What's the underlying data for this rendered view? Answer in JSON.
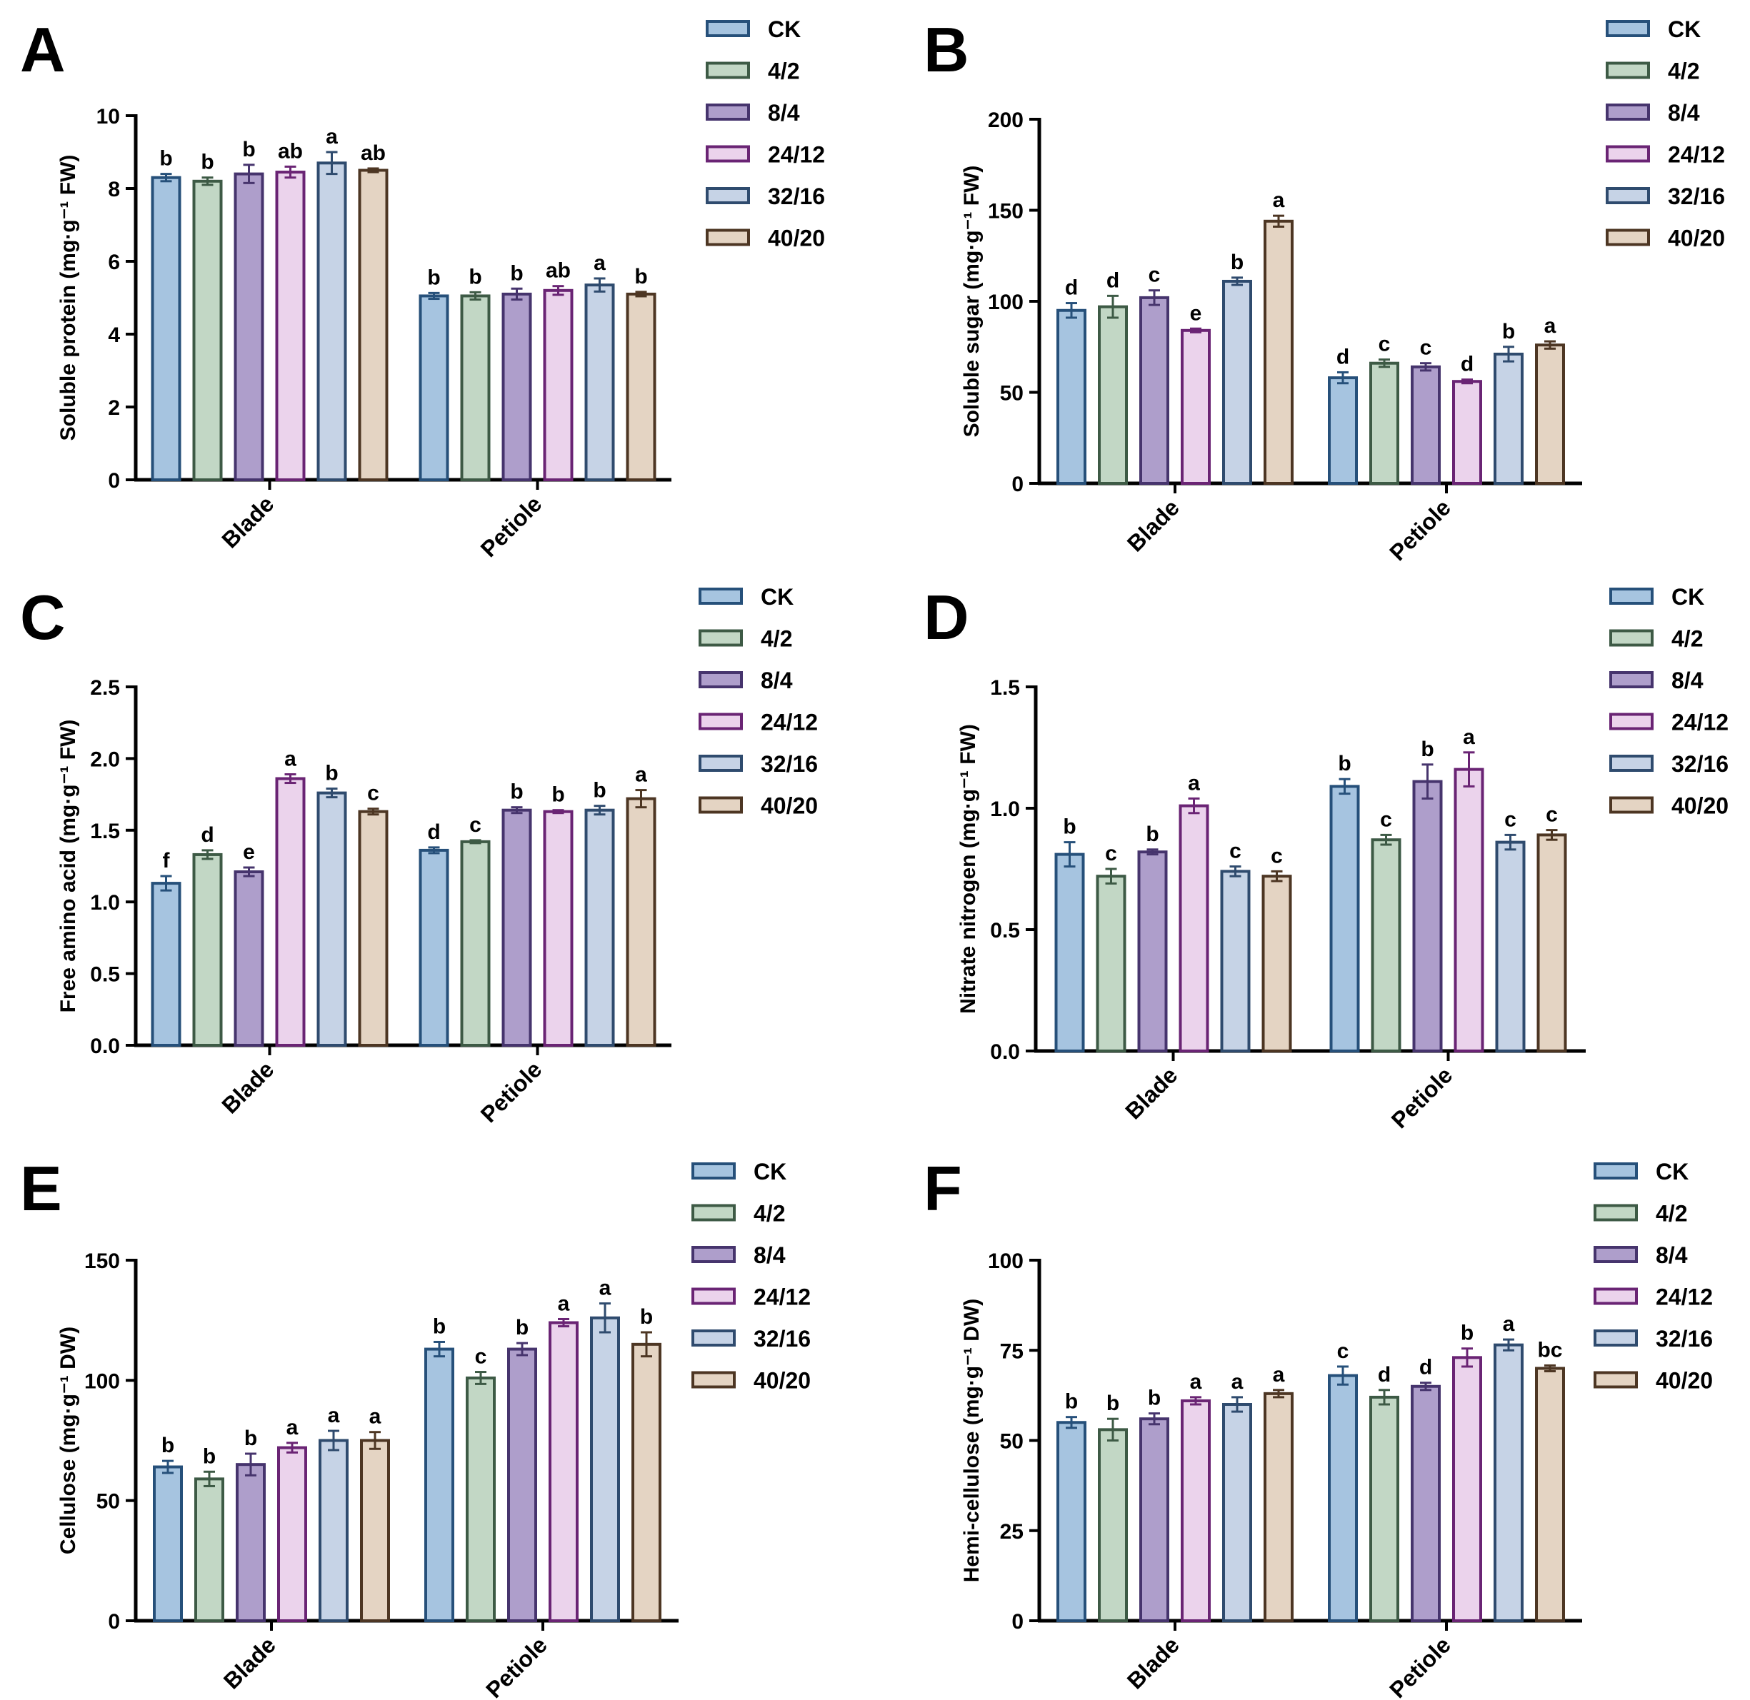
{
  "series_styles": [
    {
      "name": "CK",
      "fill": "#a6c4e0",
      "stroke": "#26507a"
    },
    {
      "name": "4/2",
      "fill": "#c2d7c5",
      "stroke": "#3d5a45"
    },
    {
      "name": "8/4",
      "fill": "#ae9ecb",
      "stroke": "#46346d"
    },
    {
      "name": "24/12",
      "fill": "#ebd3ec",
      "stroke": "#6a2474"
    },
    {
      "name": "32/16",
      "fill": "#c6d3e6",
      "stroke": "#2f4b6e"
    },
    {
      "name": "40/20",
      "fill": "#e4d4c3",
      "stroke": "#4d3623"
    }
  ],
  "chart_data": [
    {
      "panel": "A",
      "type": "bar",
      "ylabel": "Soluble protein (mg·g⁻¹ FW)",
      "ylim": [
        0,
        10
      ],
      "yticks": [
        "0",
        "2",
        "4",
        "6",
        "8",
        "10"
      ],
      "categories": [
        "Blade",
        "Petiole"
      ],
      "series": [
        {
          "name": "CK",
          "values": [
            8.3,
            5.05
          ],
          "errors": [
            0.1,
            0.08
          ],
          "letters": [
            "b",
            "b"
          ]
        },
        {
          "name": "4/2",
          "values": [
            8.2,
            5.05
          ],
          "errors": [
            0.1,
            0.1
          ],
          "letters": [
            "b",
            "b"
          ]
        },
        {
          "name": "8/4",
          "values": [
            8.4,
            5.1
          ],
          "errors": [
            0.25,
            0.15
          ],
          "letters": [
            "b",
            "b"
          ]
        },
        {
          "name": "24/12",
          "values": [
            8.45,
            5.2
          ],
          "errors": [
            0.15,
            0.12
          ],
          "letters": [
            "ab",
            "ab"
          ]
        },
        {
          "name": "32/16",
          "values": [
            8.7,
            5.35
          ],
          "errors": [
            0.3,
            0.18
          ],
          "letters": [
            "a",
            "a"
          ]
        },
        {
          "name": "40/20",
          "values": [
            8.5,
            5.1
          ],
          "errors": [
            0.05,
            0.06
          ],
          "letters": [
            "ab",
            "b"
          ]
        }
      ]
    },
    {
      "panel": "B",
      "type": "bar",
      "ylabel": "Soluble sugar (mg·g⁻¹ FW)",
      "ylim": [
        0,
        200
      ],
      "yticks": [
        "0",
        "50",
        "100",
        "150",
        "200"
      ],
      "categories": [
        "Blade",
        "Petiole"
      ],
      "series": [
        {
          "name": "CK",
          "values": [
            95,
            58
          ],
          "errors": [
            4,
            3
          ],
          "letters": [
            "d",
            "d"
          ]
        },
        {
          "name": "4/2",
          "values": [
            97,
            66
          ],
          "errors": [
            6,
            2
          ],
          "letters": [
            "d",
            "c"
          ]
        },
        {
          "name": "8/4",
          "values": [
            102,
            64
          ],
          "errors": [
            4,
            2
          ],
          "letters": [
            "c",
            "c"
          ]
        },
        {
          "name": "24/12",
          "values": [
            84,
            56
          ],
          "errors": [
            1,
            1
          ],
          "letters": [
            "e",
            "d"
          ]
        },
        {
          "name": "32/16",
          "values": [
            111,
            71
          ],
          "errors": [
            2,
            4
          ],
          "letters": [
            "b",
            "b"
          ]
        },
        {
          "name": "40/20",
          "values": [
            144,
            76
          ],
          "errors": [
            3,
            2
          ],
          "letters": [
            "a",
            "a"
          ]
        }
      ]
    },
    {
      "panel": "C",
      "type": "bar",
      "ylabel": "Free amino acid (mg·g⁻¹ FW)",
      "ylim": [
        0,
        2.5
      ],
      "yticks": [
        "0.0",
        "0.5",
        "1.0",
        "1.5",
        "2.0",
        "2.5"
      ],
      "categories": [
        "Blade",
        "Petiole"
      ],
      "series": [
        {
          "name": "CK",
          "values": [
            1.13,
            1.36
          ],
          "errors": [
            0.05,
            0.02
          ],
          "letters": [
            "f",
            "d"
          ]
        },
        {
          "name": "4/2",
          "values": [
            1.33,
            1.42
          ],
          "errors": [
            0.03,
            0.01
          ],
          "letters": [
            "d",
            "c"
          ]
        },
        {
          "name": "8/4",
          "values": [
            1.21,
            1.64
          ],
          "errors": [
            0.03,
            0.02
          ],
          "letters": [
            "e",
            "b"
          ]
        },
        {
          "name": "24/12",
          "values": [
            1.86,
            1.63
          ],
          "errors": [
            0.03,
            0.01
          ],
          "letters": [
            "a",
            "b"
          ]
        },
        {
          "name": "32/16",
          "values": [
            1.76,
            1.64
          ],
          "errors": [
            0.03,
            0.03
          ],
          "letters": [
            "b",
            "b"
          ]
        },
        {
          "name": "40/20",
          "values": [
            1.63,
            1.72
          ],
          "errors": [
            0.02,
            0.06
          ],
          "letters": [
            "c",
            "a"
          ]
        }
      ]
    },
    {
      "panel": "D",
      "type": "bar",
      "ylabel": "Nitrate nitrogen (mg·g⁻¹ FW)",
      "ylim": [
        0,
        1.5
      ],
      "yticks": [
        "0.0",
        "0.5",
        "1.0",
        "1.5"
      ],
      "categories": [
        "Blade",
        "Petiole"
      ],
      "series": [
        {
          "name": "CK",
          "values": [
            0.81,
            1.09
          ],
          "errors": [
            0.05,
            0.03
          ],
          "letters": [
            "b",
            "b"
          ]
        },
        {
          "name": "4/2",
          "values": [
            0.72,
            0.87
          ],
          "errors": [
            0.03,
            0.02
          ],
          "letters": [
            "c",
            "c"
          ]
        },
        {
          "name": "8/4",
          "values": [
            0.82,
            1.11
          ],
          "errors": [
            0.01,
            0.07
          ],
          "letters": [
            "b",
            "b"
          ]
        },
        {
          "name": "24/12",
          "values": [
            1.01,
            1.16
          ],
          "errors": [
            0.03,
            0.07
          ],
          "letters": [
            "a",
            "a"
          ]
        },
        {
          "name": "32/16",
          "values": [
            0.74,
            0.86
          ],
          "errors": [
            0.02,
            0.03
          ],
          "letters": [
            "c",
            "c"
          ]
        },
        {
          "name": "40/20",
          "values": [
            0.72,
            0.89
          ],
          "errors": [
            0.02,
            0.02
          ],
          "letters": [
            "c",
            "c"
          ]
        }
      ]
    },
    {
      "panel": "E",
      "type": "bar",
      "ylabel": "Cellulose (mg·g⁻¹ DW)",
      "ylim": [
        0,
        150
      ],
      "yticks": [
        "0",
        "50",
        "100",
        "150"
      ],
      "categories": [
        "Blade",
        "Petiole"
      ],
      "series": [
        {
          "name": "CK",
          "values": [
            64,
            113
          ],
          "errors": [
            2.5,
            3
          ],
          "letters": [
            "b",
            "b"
          ]
        },
        {
          "name": "4/2",
          "values": [
            59,
            101
          ],
          "errors": [
            3,
            2.5
          ],
          "letters": [
            "b",
            "c"
          ]
        },
        {
          "name": "8/4",
          "values": [
            65,
            113
          ],
          "errors": [
            4.5,
            2.5
          ],
          "letters": [
            "b",
            "b"
          ]
        },
        {
          "name": "24/12",
          "values": [
            72,
            124
          ],
          "errors": [
            2,
            1.5
          ],
          "letters": [
            "a",
            "a"
          ]
        },
        {
          "name": "32/16",
          "values": [
            75,
            126
          ],
          "errors": [
            4,
            6
          ],
          "letters": [
            "a",
            "a"
          ]
        },
        {
          "name": "40/20",
          "values": [
            75,
            115
          ],
          "errors": [
            3.5,
            5
          ],
          "letters": [
            "a",
            "b"
          ]
        }
      ]
    },
    {
      "panel": "F",
      "type": "bar",
      "ylabel": "Hemi-cellulose (mg·g⁻¹ DW)",
      "ylim": [
        0,
        100
      ],
      "yticks": [
        "0",
        "25",
        "50",
        "75",
        "100"
      ],
      "categories": [
        "Blade",
        "Petiole"
      ],
      "series": [
        {
          "name": "CK",
          "values": [
            55,
            68
          ],
          "errors": [
            1.5,
            2.5
          ],
          "letters": [
            "b",
            "c"
          ]
        },
        {
          "name": "4/2",
          "values": [
            53,
            62
          ],
          "errors": [
            3,
            2
          ],
          "letters": [
            "b",
            "d"
          ]
        },
        {
          "name": "8/4",
          "values": [
            56,
            65
          ],
          "errors": [
            1.5,
            1
          ],
          "letters": [
            "b",
            "d"
          ]
        },
        {
          "name": "24/12",
          "values": [
            61,
            73
          ],
          "errors": [
            1,
            2.5
          ],
          "letters": [
            "a",
            "b"
          ]
        },
        {
          "name": "32/16",
          "values": [
            60,
            76.5
          ],
          "errors": [
            2,
            1.5
          ],
          "letters": [
            "a",
            "a"
          ]
        },
        {
          "name": "40/20",
          "values": [
            63,
            70
          ],
          "errors": [
            1,
            0.8
          ],
          "letters": [
            "a",
            "bc"
          ]
        }
      ]
    }
  ]
}
